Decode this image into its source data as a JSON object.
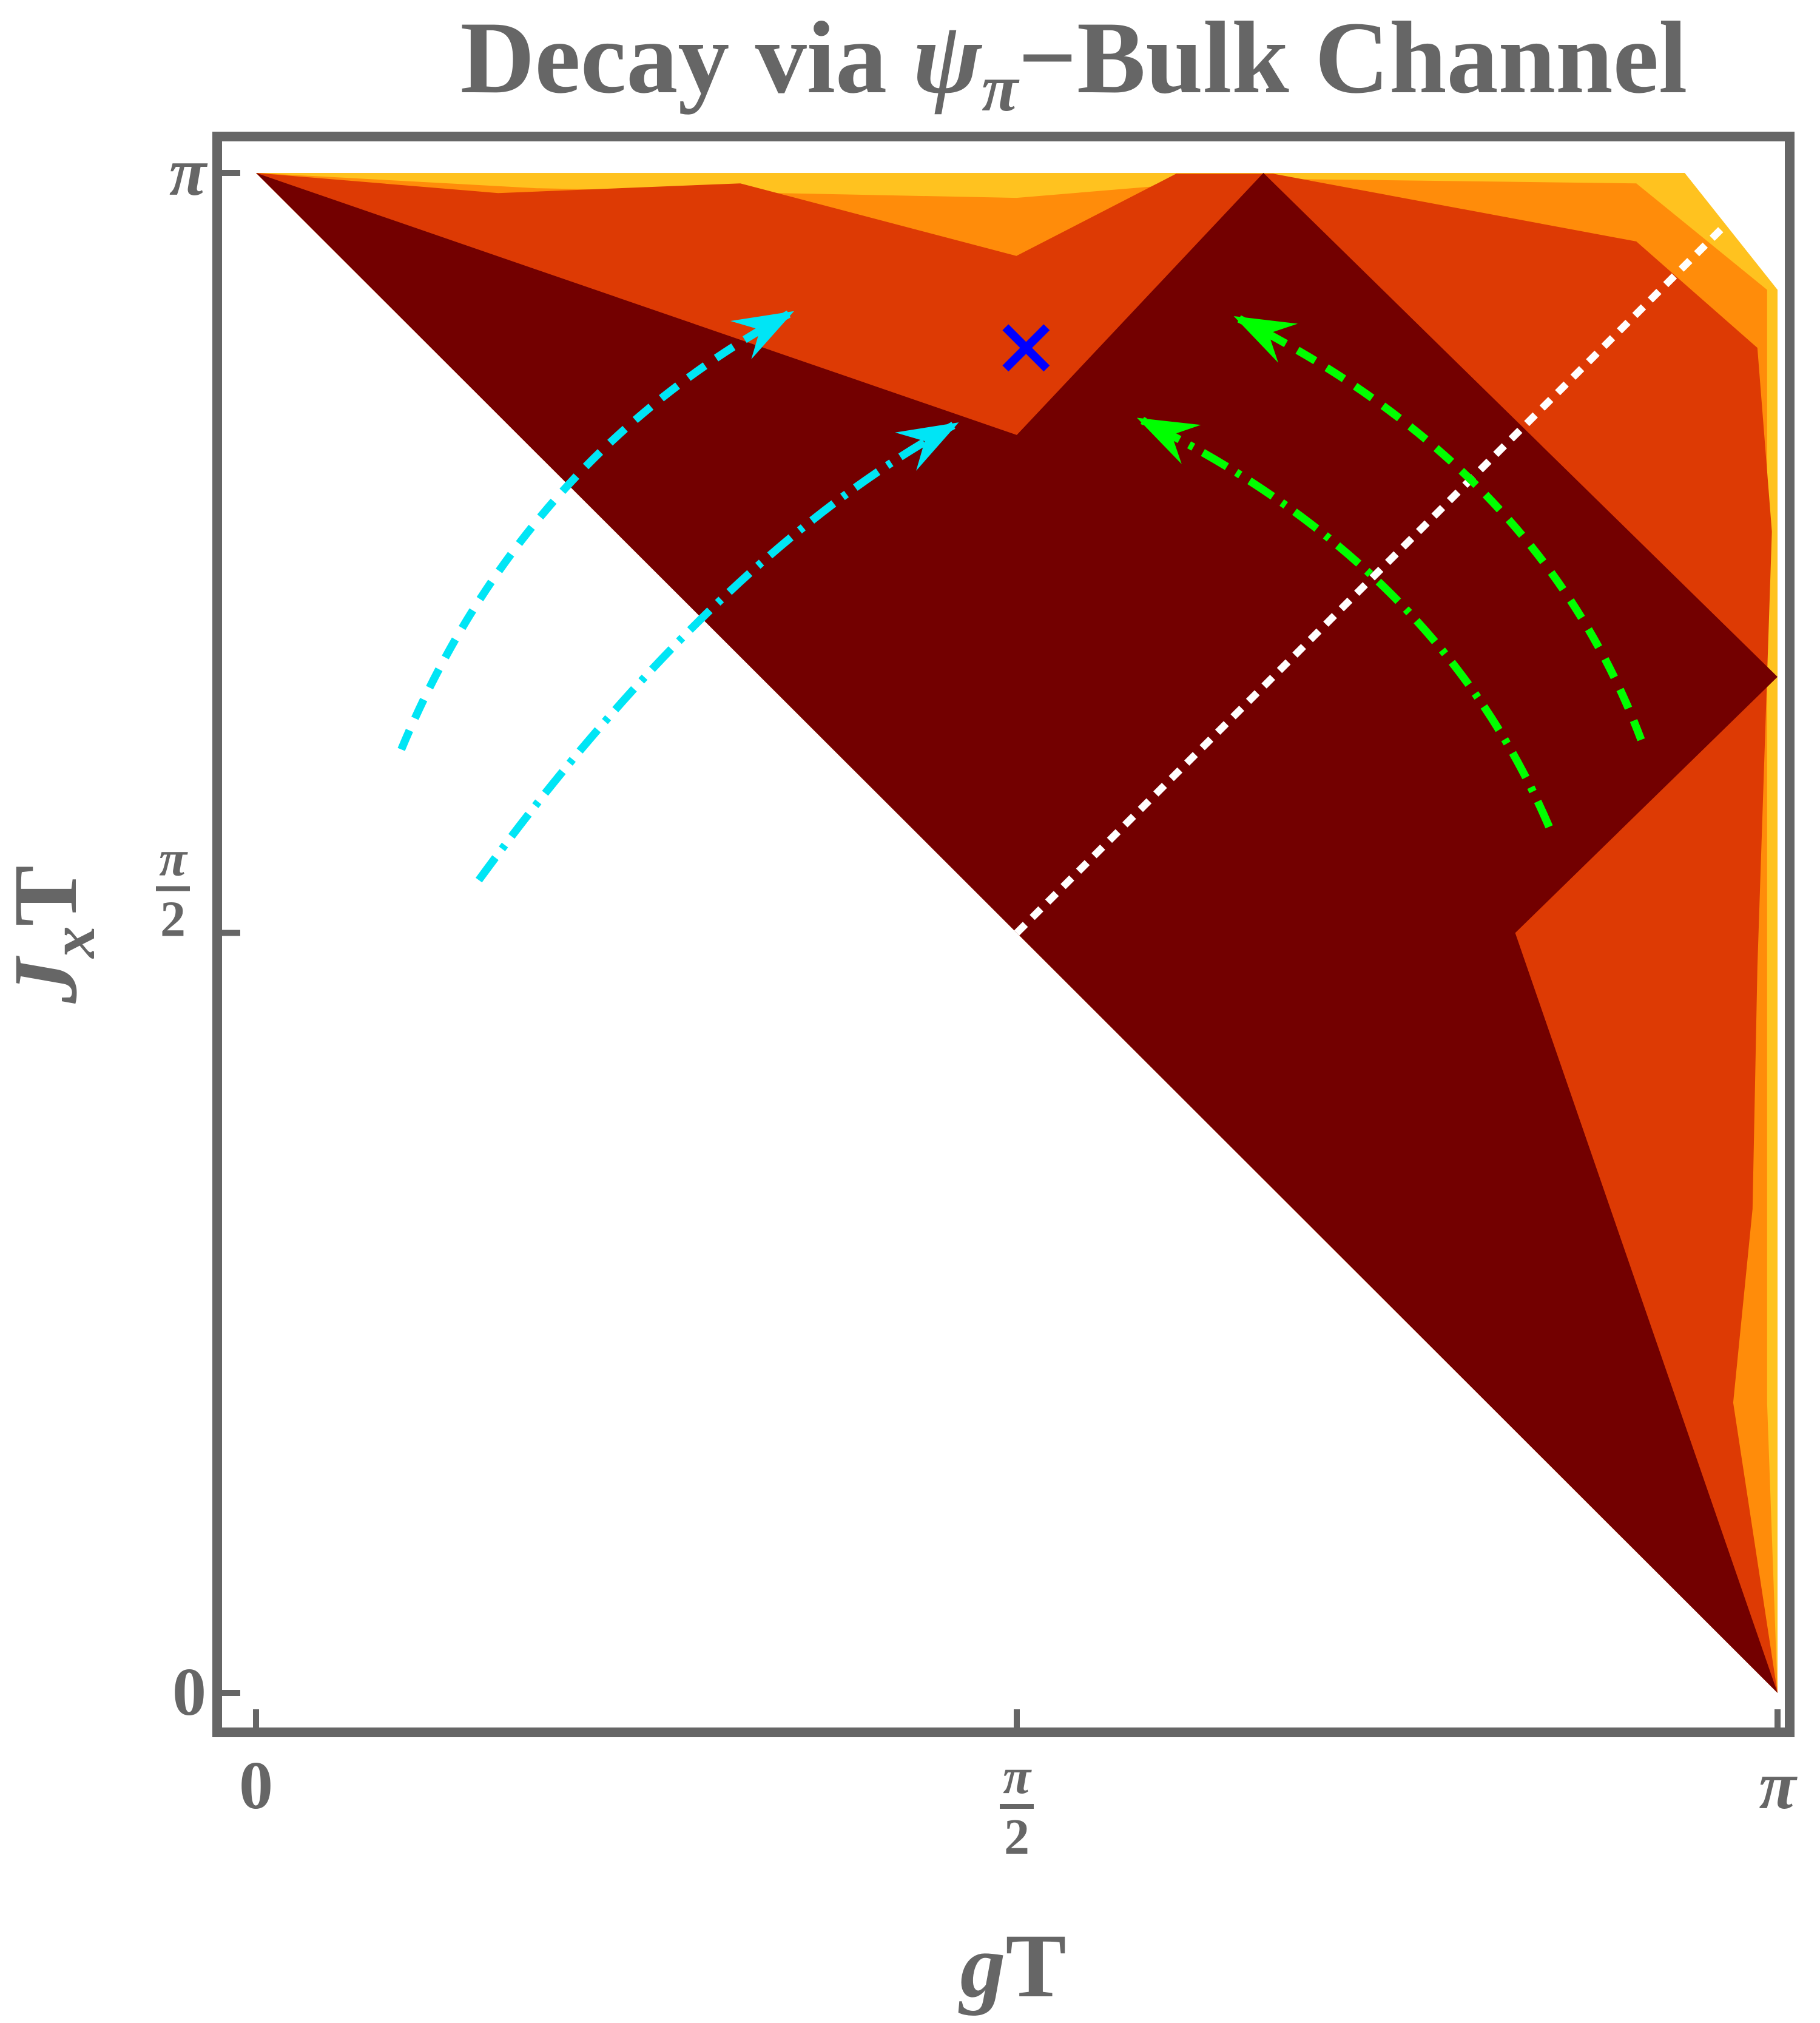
{
  "chart_data": {
    "type": "heatmap",
    "title_parts": [
      "Decay via ",
      "ψ",
      "π",
      "−Bulk Channel"
    ],
    "xlabel_parts": [
      "g",
      "T"
    ],
    "ylabel_parts": [
      "J",
      "x",
      "T"
    ],
    "xlim": [
      0,
      3.1416
    ],
    "ylim": [
      0,
      3.1416
    ],
    "xticks": [
      {
        "value": 0,
        "label": "0"
      },
      {
        "value": 1.5708,
        "label": "π/2",
        "num": "π",
        "den": "2"
      },
      {
        "value": 3.1416,
        "label": "π"
      }
    ],
    "yticks": [
      {
        "value": 0,
        "label": "0"
      },
      {
        "value": 1.5708,
        "label": "π/2",
        "num": "π",
        "den": "2"
      },
      {
        "value": 3.1416,
        "label": "π"
      }
    ],
    "colors": {
      "level0": "#730000",
      "level1": "#dd3a04",
      "level2": "#ff8c0a",
      "level3": "#ffc21f",
      "frame": "#666666",
      "cyan": "#00e5f5",
      "green": "#00ff00",
      "marker": "#0000ff",
      "diagonal": "#ffffff"
    },
    "regions": [
      {
        "level": 3,
        "polygon": [
          [
            0,
            3.1416
          ],
          [
            0.58,
            3.1416
          ],
          [
            1.57,
            3.1416
          ],
          [
            2.05,
            3.1416
          ],
          [
            2.95,
            3.1416
          ],
          [
            3.1416,
            2.9
          ],
          [
            3.1416,
            1.5
          ],
          [
            3.1416,
            0.6
          ],
          [
            3.1416,
            0
          ]
        ]
      },
      {
        "level": 2,
        "polygon": [
          [
            0,
            3.1416
          ],
          [
            0.58,
            3.11
          ],
          [
            1.57,
            3.09
          ],
          [
            2.05,
            3.13
          ],
          [
            2.85,
            3.12
          ],
          [
            3.12,
            2.9
          ],
          [
            3.12,
            1.5
          ],
          [
            3.12,
            0.6
          ],
          [
            3.1416,
            0
          ]
        ]
      },
      {
        "level": 1,
        "polygon": [
          [
            0,
            3.1416
          ],
          [
            0.5,
            3.1
          ],
          [
            1.0,
            3.12
          ],
          [
            1.57,
            2.97
          ],
          [
            1.9,
            3.14
          ],
          [
            2.1,
            3.14
          ],
          [
            2.85,
            3.0
          ],
          [
            3.1,
            2.78
          ],
          [
            3.13,
            2.4
          ],
          [
            3.1,
            1.5
          ],
          [
            3.09,
            1.0
          ],
          [
            3.05,
            0.6
          ],
          [
            3.1416,
            0
          ]
        ]
      },
      {
        "level": 0,
        "polygon": [
          [
            0,
            3.1416
          ],
          [
            1.5708,
            2.6
          ],
          [
            2.08,
            3.1416
          ],
          [
            3.1416,
            2.1
          ],
          [
            2.6,
            1.5708
          ],
          [
            3.1416,
            0
          ],
          [
            1.5708,
            1.5708
          ]
        ]
      }
    ],
    "diagonal": {
      "label": "",
      "from": [
        1.5708,
        1.5708
      ],
      "to": [
        3.1,
        3.1
      ]
    },
    "arrows": [
      {
        "color": "cyan",
        "style": "dashed",
        "path": [
          [
            0.3,
            1.95
          ],
          [
            0.55,
            2.55
          ],
          [
            1.1,
            2.85
          ]
        ]
      },
      {
        "color": "cyan",
        "style": "dashdot",
        "path": [
          [
            0.46,
            1.68
          ],
          [
            0.95,
            2.35
          ],
          [
            1.44,
            2.62
          ]
        ]
      },
      {
        "color": "green",
        "style": "dashed",
        "path": [
          [
            2.86,
            1.97
          ],
          [
            2.65,
            2.53
          ],
          [
            2.03,
            2.84
          ]
        ]
      },
      {
        "color": "green",
        "style": "dashdot",
        "path": [
          [
            2.67,
            1.79
          ],
          [
            2.44,
            2.33
          ],
          [
            1.83,
            2.63
          ]
        ]
      }
    ],
    "marker": {
      "x": 1.59,
      "y": 2.78,
      "symbol": "×"
    },
    "grid": false,
    "legend": "none"
  }
}
